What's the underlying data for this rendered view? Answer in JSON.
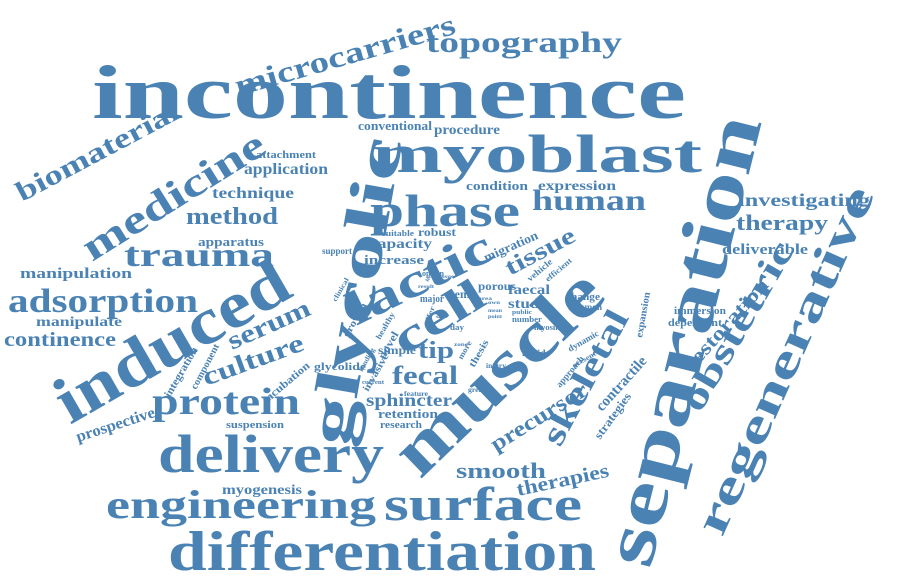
{
  "theme": {
    "word_color": "#4a82b4",
    "background": "#ffffff"
  },
  "words": {
    "incontinence": "incontinence",
    "separation": "separation",
    "muscle": "muscle",
    "induced": "induced",
    "glycolic": "glycolic",
    "myoblast": "myoblast",
    "differentiation": "differentiation",
    "delivery": "delivery",
    "surface": "surface",
    "engineering": "engineering",
    "regenerative": "regenerative",
    "lactic": "lactic",
    "cell": "cell",
    "phase": "phase",
    "medicine": "medicine",
    "topography": "topography",
    "microcarriers": "microcarriers",
    "biomaterial": "biomaterial",
    "adsorption": "adsorption",
    "trauma": "trauma",
    "protein": "protein",
    "skeletal": "skeletal",
    "obstetric": "obstetric",
    "human": "human",
    "continence": "continence",
    "manipulation": "manipulation",
    "manipulate": "manipulate",
    "serum": "serum",
    "culture": "culture",
    "fecal": "fecal",
    "tip": "tip",
    "smooth": "smooth",
    "therapies": "therapies",
    "precursor": "precursor",
    "tissue": "tissue",
    "restoration": "restoration",
    "therapy": "therapy",
    "investigating": "investigating",
    "method": "method",
    "technique": "technique",
    "application": "application",
    "attachment": "attachment",
    "apparatus": "apparatus",
    "conventional": "conventional",
    "procedure": "procedure",
    "condition": "condition",
    "expression": "expression",
    "capacity": "capacity",
    "increase": "increase",
    "robust": "robust",
    "suitable": "suitable",
    "support": "support",
    "migration": "migration",
    "deliverable": "deliverable",
    "sphincter": "sphincter",
    "retention": "retention",
    "research": "research",
    "prospective": "prospective",
    "suspension": "suspension",
    "myogenesis": "myogenesis",
    "integration": "integration",
    "component": "component",
    "incubation": "incubation",
    "glycolide": "glycolide",
    "growth": "growth",
    "clinical": "clinical",
    "invasive": "invasive",
    "novel": "novel",
    "simple": "simple",
    "healthy": "healthy",
    "funding": "funding",
    "stem": "stem",
    "major": "major",
    "option": "option",
    "offer": "offer",
    "day": "day",
    "porous": "porous",
    "vehicle": "vehicle",
    "efficient": "efficient",
    "faecal": "faecal",
    "study": "study",
    "number": "number",
    "public": "public",
    "myosin": "myosin",
    "change": "change",
    "common": "common",
    "immersion": "immersion",
    "dependent": "dependent",
    "expansion": "expansion",
    "contractile": "contractile",
    "strategies": "strategies",
    "approach": "approach",
    "dynamic": "dynamic",
    "present": "present",
    "lactide": "lactide",
    "thesis": "thesis",
    "more": "more",
    "greater": "greater",
    "injury": "injury",
    "result": "result",
    "heavy": "heavy",
    "issue": "issue",
    "mean": "mean",
    "point": "point",
    "current": "current",
    "feature": "feature",
    "own": "own",
    "zone": "zone",
    "due": "due",
    "area": "area"
  }
}
